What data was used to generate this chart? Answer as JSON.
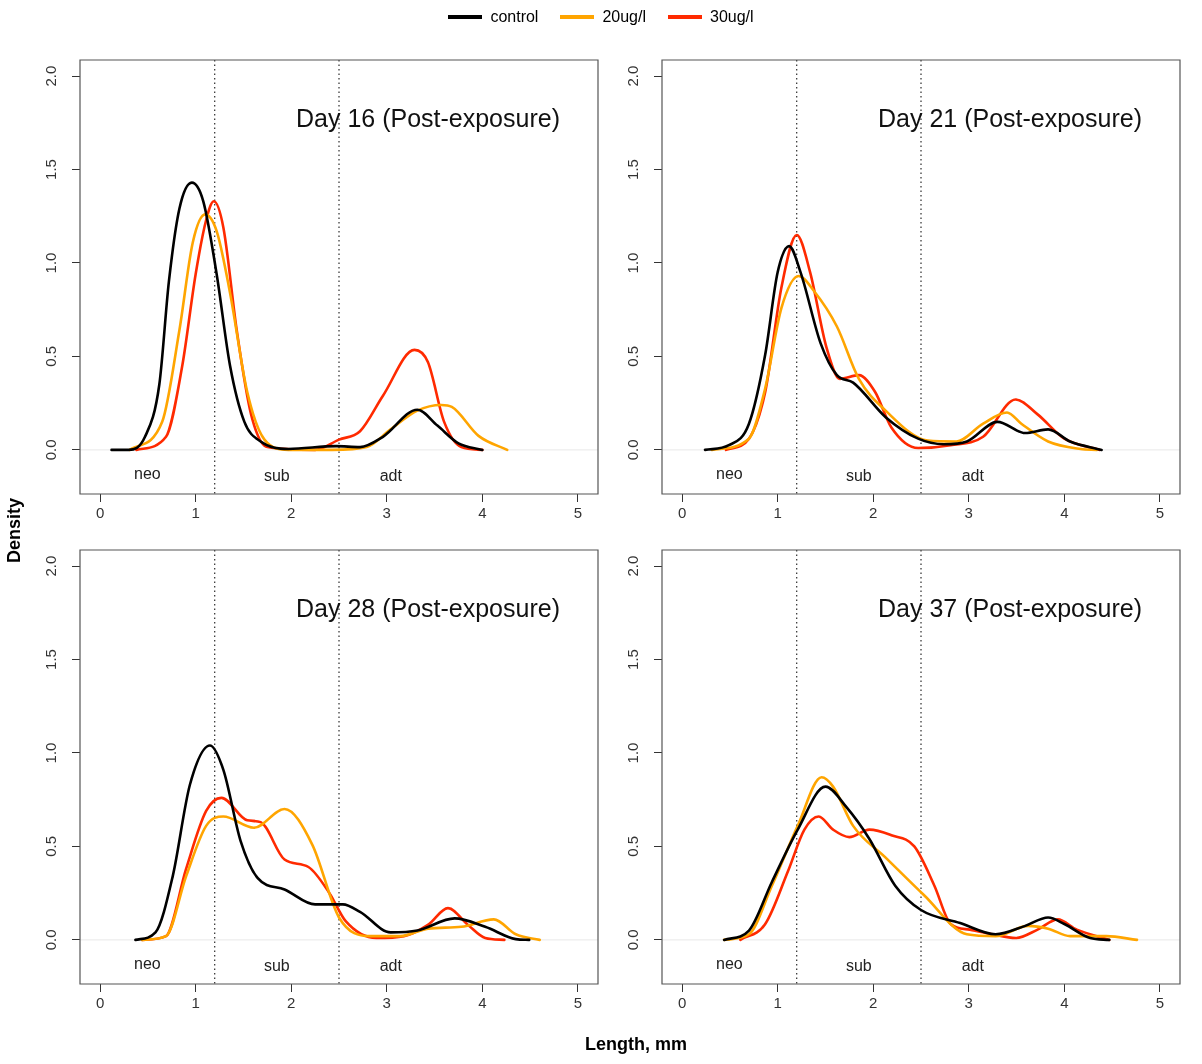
{
  "chart_data": [
    {
      "type": "line",
      "title": "Day 16 (Post-exposure)",
      "ylabel": "Density",
      "legend": "top",
      "xlim": [
        -0.21,
        5.21
      ],
      "ylim": [
        -0.236,
        2.086
      ],
      "xticks": [
        0,
        1,
        2,
        3,
        4,
        5
      ],
      "yticks": [
        {
          "value": 0,
          "label": "0.0"
        },
        {
          "value": 0.5,
          "label": "0.5"
        },
        {
          "value": 1,
          "label": "1.0"
        },
        {
          "value": 1.5,
          "label": "1.5"
        },
        {
          "value": 2,
          "label": "2.0"
        }
      ],
      "grid": false,
      "line_style": "solid",
      "ref_lines": [
        {
          "axis": "x",
          "value": 1.2,
          "color": "#000000",
          "line_style": "dotted"
        },
        {
          "axis": "x",
          "value": 2.5,
          "color": "#000000",
          "line_style": "dotted"
        },
        {
          "axis": "y",
          "value": 0,
          "color": "#e8e8e8",
          "line_style": "solid"
        }
      ],
      "annotations": [
        "neo",
        "sub",
        "adt"
      ],
      "series": [
        {
          "name": "control",
          "color": "#000000",
          "x": [
            0.12,
            0.3,
            0.47,
            0.62,
            0.72,
            0.83,
            0.96,
            1.08,
            1.22,
            1.36,
            1.51,
            1.68,
            1.97,
            2.47,
            2.72,
            2.96,
            3.32,
            3.53,
            3.75,
            4.0
          ],
          "values": [
            0,
            0,
            0.07,
            0.35,
            0.9,
            1.29,
            1.43,
            1.33,
            0.94,
            0.45,
            0.15,
            0.045,
            0.005,
            0.02,
            0.015,
            0.07,
            0.215,
            0.13,
            0.035,
            0
          ]
        },
        {
          "name": "20ug/l",
          "color": "#ffa500",
          "x": [
            0.31,
            0.65,
            0.83,
            0.97,
            1.1,
            1.22,
            1.36,
            1.54,
            1.72,
            1.97,
            2.43,
            2.79,
            3.04,
            3.32,
            3.57,
            3.68,
            3.96,
            4.26
          ],
          "values": [
            0,
            0.15,
            0.64,
            1.11,
            1.26,
            1.17,
            0.84,
            0.31,
            0.055,
            0,
            0,
            0.015,
            0.11,
            0.21,
            0.24,
            0.23,
            0.075,
            0
          ]
        },
        {
          "name": "30ug/l",
          "color": "#ff2a00",
          "x": [
            0.38,
            0.69,
            0.86,
            1.0,
            1.11,
            1.19,
            1.29,
            1.43,
            1.58,
            1.75,
            2.25,
            2.5,
            2.72,
            2.96,
            3.29,
            3.43,
            3.6,
            3.78,
            4.0
          ],
          "values": [
            0,
            0.07,
            0.45,
            0.94,
            1.23,
            1.33,
            1.19,
            0.64,
            0.19,
            0.015,
            0,
            0.055,
            0.1,
            0.29,
            0.535,
            0.47,
            0.15,
            0.015,
            0
          ]
        }
      ]
    },
    {
      "type": "line",
      "title": "Day 21 (Post-exposure)",
      "xlim": [
        -0.21,
        5.21
      ],
      "ylim": [
        -0.236,
        2.086
      ],
      "xticks": [
        0,
        1,
        2,
        3,
        4,
        5
      ],
      "yticks": [
        {
          "value": 0,
          "label": "0.0"
        },
        {
          "value": 0.5,
          "label": "0.5"
        },
        {
          "value": 1,
          "label": "1.0"
        },
        {
          "value": 1.5,
          "label": "1.5"
        },
        {
          "value": 2,
          "label": "2.0"
        }
      ],
      "grid": false,
      "line_style": "solid",
      "ref_lines": [
        {
          "axis": "x",
          "value": 1.2,
          "color": "#000000",
          "line_style": "dotted"
        },
        {
          "axis": "x",
          "value": 2.5,
          "color": "#000000",
          "line_style": "dotted"
        },
        {
          "axis": "y",
          "value": 0,
          "color": "#e8e8e8",
          "line_style": "solid"
        }
      ],
      "annotations": [
        "neo",
        "sub",
        "adt"
      ],
      "series": [
        {
          "color": "#000000",
          "x": [
            0.24,
            0.49,
            0.7,
            0.87,
            1.0,
            1.12,
            1.24,
            1.45,
            1.62,
            1.79,
            2.13,
            2.47,
            2.74,
            2.98,
            3.3,
            3.59,
            3.83,
            4.06,
            4.39
          ],
          "values": [
            0,
            0.025,
            0.14,
            0.51,
            0.95,
            1.09,
            0.95,
            0.57,
            0.4,
            0.36,
            0.175,
            0.06,
            0.03,
            0.045,
            0.15,
            0.09,
            0.11,
            0.045,
            0
          ]
        },
        {
          "color": "#ffa500",
          "x": [
            0.31,
            0.7,
            0.87,
            1.04,
            1.22,
            1.38,
            1.62,
            1.85,
            2.13,
            2.57,
            2.87,
            3.15,
            3.4,
            3.55,
            3.83,
            4.17,
            4.34
          ],
          "values": [
            0,
            0.06,
            0.33,
            0.76,
            0.93,
            0.85,
            0.66,
            0.38,
            0.21,
            0.05,
            0.045,
            0.14,
            0.2,
            0.14,
            0.045,
            0.005,
            0
          ]
        },
        {
          "color": "#ff2a00",
          "x": [
            0.46,
            0.7,
            0.87,
            1.04,
            1.2,
            1.34,
            1.51,
            1.65,
            1.85,
            2.02,
            2.19,
            2.47,
            2.81,
            3.15,
            3.49,
            3.72,
            4.0,
            4.37
          ],
          "values": [
            0,
            0.06,
            0.31,
            0.87,
            1.15,
            0.95,
            0.55,
            0.38,
            0.4,
            0.31,
            0.12,
            0.01,
            0.025,
            0.07,
            0.27,
            0.19,
            0.06,
            0
          ]
        }
      ]
    },
    {
      "type": "line",
      "title": "Day 28 (Post-exposure)",
      "xlabel": "Length, mm",
      "xlim": [
        -0.21,
        5.21
      ],
      "ylim": [
        -0.236,
        2.086
      ],
      "xticks": [
        0,
        1,
        2,
        3,
        4,
        5
      ],
      "yticks": [
        {
          "value": 0,
          "label": "0.0"
        },
        {
          "value": 0.5,
          "label": "0.5"
        },
        {
          "value": 1,
          "label": "1.0"
        },
        {
          "value": 1.5,
          "label": "1.5"
        },
        {
          "value": 2,
          "label": "2.0"
        }
      ],
      "grid": false,
      "line_style": "solid",
      "ref_lines": [
        {
          "axis": "x",
          "value": 1.2,
          "color": "#000000",
          "line_style": "dotted"
        },
        {
          "axis": "x",
          "value": 2.5,
          "color": "#000000",
          "line_style": "dotted"
        },
        {
          "axis": "y",
          "value": 0,
          "color": "#e8e8e8",
          "line_style": "solid"
        }
      ],
      "annotations": [
        "neo",
        "sub",
        "adt"
      ],
      "series": [
        {
          "color": "#000000",
          "x": [
            0.37,
            0.58,
            0.76,
            0.94,
            1.15,
            1.29,
            1.47,
            1.65,
            1.93,
            2.25,
            2.54,
            2.72,
            3.04,
            3.32,
            3.71,
            4.03,
            4.35,
            4.49
          ],
          "values": [
            0,
            0.04,
            0.34,
            0.83,
            1.04,
            0.91,
            0.53,
            0.33,
            0.27,
            0.19,
            0.19,
            0.15,
            0.04,
            0.05,
            0.115,
            0.07,
            0.004,
            0
          ]
        },
        {
          "color": "#ffa500",
          "x": [
            0.44,
            0.69,
            0.9,
            1.11,
            1.29,
            1.61,
            1.93,
            2.22,
            2.5,
            2.82,
            3.14,
            3.43,
            3.78,
            4.12,
            4.35,
            4.6
          ],
          "values": [
            0,
            0.02,
            0.34,
            0.61,
            0.66,
            0.6,
            0.7,
            0.51,
            0.12,
            0.02,
            0.02,
            0.06,
            0.07,
            0.11,
            0.03,
            0
          ]
        },
        {
          "color": "#ff2a00",
          "x": [
            0.44,
            0.69,
            0.9,
            1.11,
            1.27,
            1.54,
            1.68,
            1.93,
            2.18,
            2.4,
            2.57,
            2.89,
            3.18,
            3.43,
            3.64,
            3.85,
            4.03,
            4.23
          ],
          "values": [
            0,
            0.02,
            0.38,
            0.69,
            0.76,
            0.64,
            0.63,
            0.43,
            0.39,
            0.25,
            0.1,
            0.01,
            0.02,
            0.08,
            0.17,
            0.08,
            0.01,
            0
          ]
        }
      ]
    },
    {
      "type": "line",
      "title": "Day 37 (Post-exposure)",
      "xlim": [
        -0.21,
        5.21
      ],
      "ylim": [
        -0.236,
        2.086
      ],
      "xticks": [
        0,
        1,
        2,
        3,
        4,
        5
      ],
      "yticks": [
        {
          "value": 0,
          "label": "0.0"
        },
        {
          "value": 0.5,
          "label": "0.5"
        },
        {
          "value": 1,
          "label": "1.0"
        },
        {
          "value": 1.5,
          "label": "1.5"
        },
        {
          "value": 2,
          "label": "2.0"
        }
      ],
      "grid": false,
      "line_style": "solid",
      "ref_lines": [
        {
          "axis": "x",
          "value": 1.2,
          "color": "#000000",
          "line_style": "dotted"
        },
        {
          "axis": "x",
          "value": 2.5,
          "color": "#000000",
          "line_style": "dotted"
        },
        {
          "axis": "y",
          "value": 0,
          "color": "#e8e8e8",
          "line_style": "solid"
        }
      ],
      "annotations": [
        "neo",
        "sub",
        "adt"
      ],
      "series": [
        {
          "color": "#000000",
          "x": [
            0.44,
            0.7,
            0.94,
            1.21,
            1.5,
            1.72,
            1.96,
            2.23,
            2.5,
            2.91,
            3.28,
            3.59,
            3.83,
            4.0,
            4.27,
            4.47
          ],
          "values": [
            0,
            0.05,
            0.31,
            0.59,
            0.82,
            0.71,
            0.54,
            0.29,
            0.16,
            0.09,
            0.03,
            0.075,
            0.12,
            0.085,
            0.01,
            0
          ]
        },
        {
          "color": "#ffa500",
          "x": [
            0.44,
            0.7,
            0.94,
            1.21,
            1.46,
            1.58,
            1.79,
            2.13,
            2.53,
            2.98,
            3.28,
            3.62,
            3.83,
            4.06,
            4.44,
            4.76
          ],
          "values": [
            0,
            0.03,
            0.29,
            0.61,
            0.87,
            0.82,
            0.61,
            0.44,
            0.24,
            0.03,
            0.02,
            0.075,
            0.06,
            0.02,
            0.02,
            0
          ]
        },
        {
          "color": "#ff2a00",
          "x": [
            0.61,
            0.87,
            1.11,
            1.28,
            1.43,
            1.58,
            1.75,
            1.96,
            2.19,
            2.43,
            2.64,
            2.81,
            3.01,
            3.25,
            3.49,
            3.72,
            3.93,
            4.13,
            4.47
          ],
          "values": [
            0,
            0.085,
            0.37,
            0.59,
            0.66,
            0.59,
            0.55,
            0.59,
            0.56,
            0.5,
            0.29,
            0.085,
            0.055,
            0.03,
            0.01,
            0.055,
            0.11,
            0.055,
            0
          ]
        }
      ]
    }
  ]
}
